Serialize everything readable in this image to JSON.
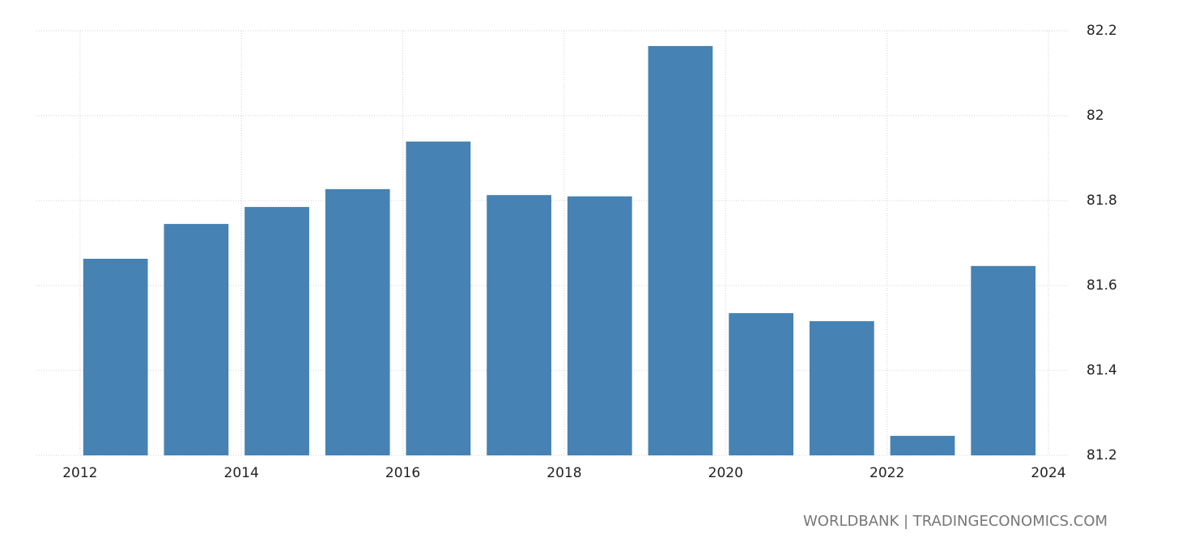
{
  "chart_data": {
    "type": "bar",
    "x": [
      2012,
      2013,
      2014,
      2015,
      2016,
      2017,
      2018,
      2019,
      2020,
      2021,
      2022,
      2023
    ],
    "values": [
      81.663,
      81.745,
      81.785,
      81.827,
      81.939,
      81.813,
      81.81,
      82.164,
      81.535,
      81.516,
      81.246,
      81.646
    ],
    "color": "#4682b4",
    "xlim": [
      2011.46,
      2024
    ],
    "xticks": [
      2012,
      2014,
      2016,
      2018,
      2020,
      2022,
      2024
    ],
    "ylim": [
      81.2,
      82.2
    ],
    "yticks": [
      81.2,
      81.4,
      81.6,
      81.8,
      82,
      82.2
    ],
    "grid": true,
    "source": "WORLDBANK | TRADINGECONOMICS.COM"
  }
}
